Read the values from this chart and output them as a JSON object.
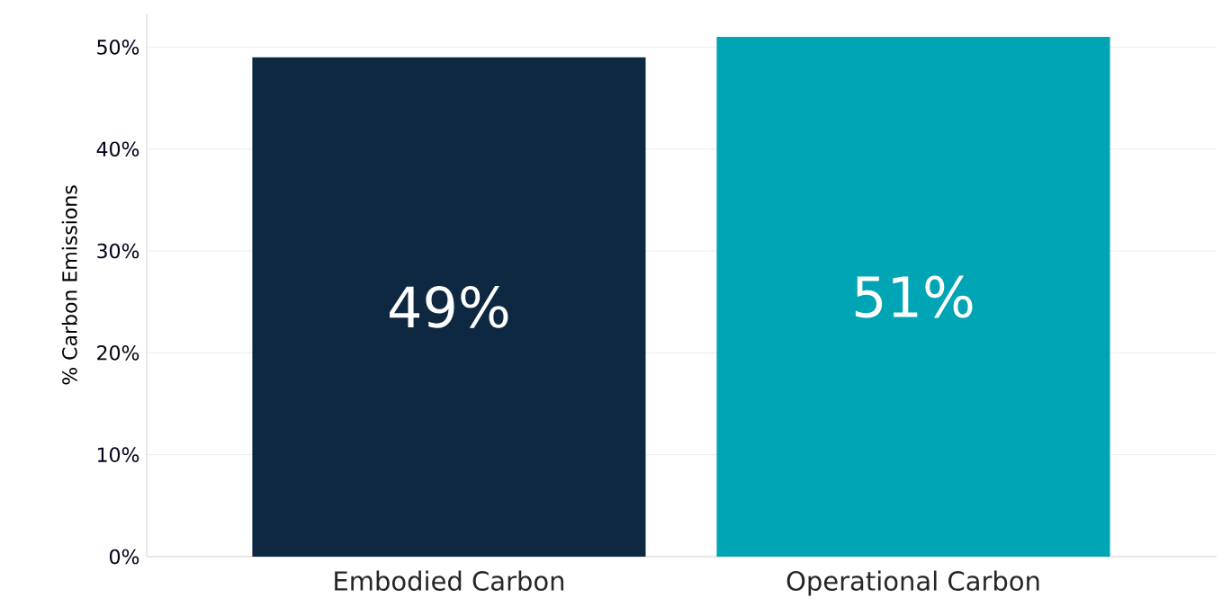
{
  "chart_data": {
    "type": "bar",
    "ylabel": "% Carbon Emissions",
    "categories": [
      "Embodied Carbon",
      "Operational Carbon"
    ],
    "values": [
      49,
      51
    ],
    "colors": [
      "#0d2840",
      "#00a5b5"
    ],
    "value_labels": [
      "49%",
      "51%"
    ],
    "ylim": [
      0,
      53.3
    ],
    "yticks": [
      {
        "value": 0,
        "label": "0%"
      },
      {
        "value": 10,
        "label": "10%"
      },
      {
        "value": 20,
        "label": "20%"
      },
      {
        "value": 30,
        "label": "30%"
      },
      {
        "value": 40,
        "label": "40%"
      },
      {
        "value": 50,
        "label": "50%"
      }
    ],
    "grid": "y"
  }
}
